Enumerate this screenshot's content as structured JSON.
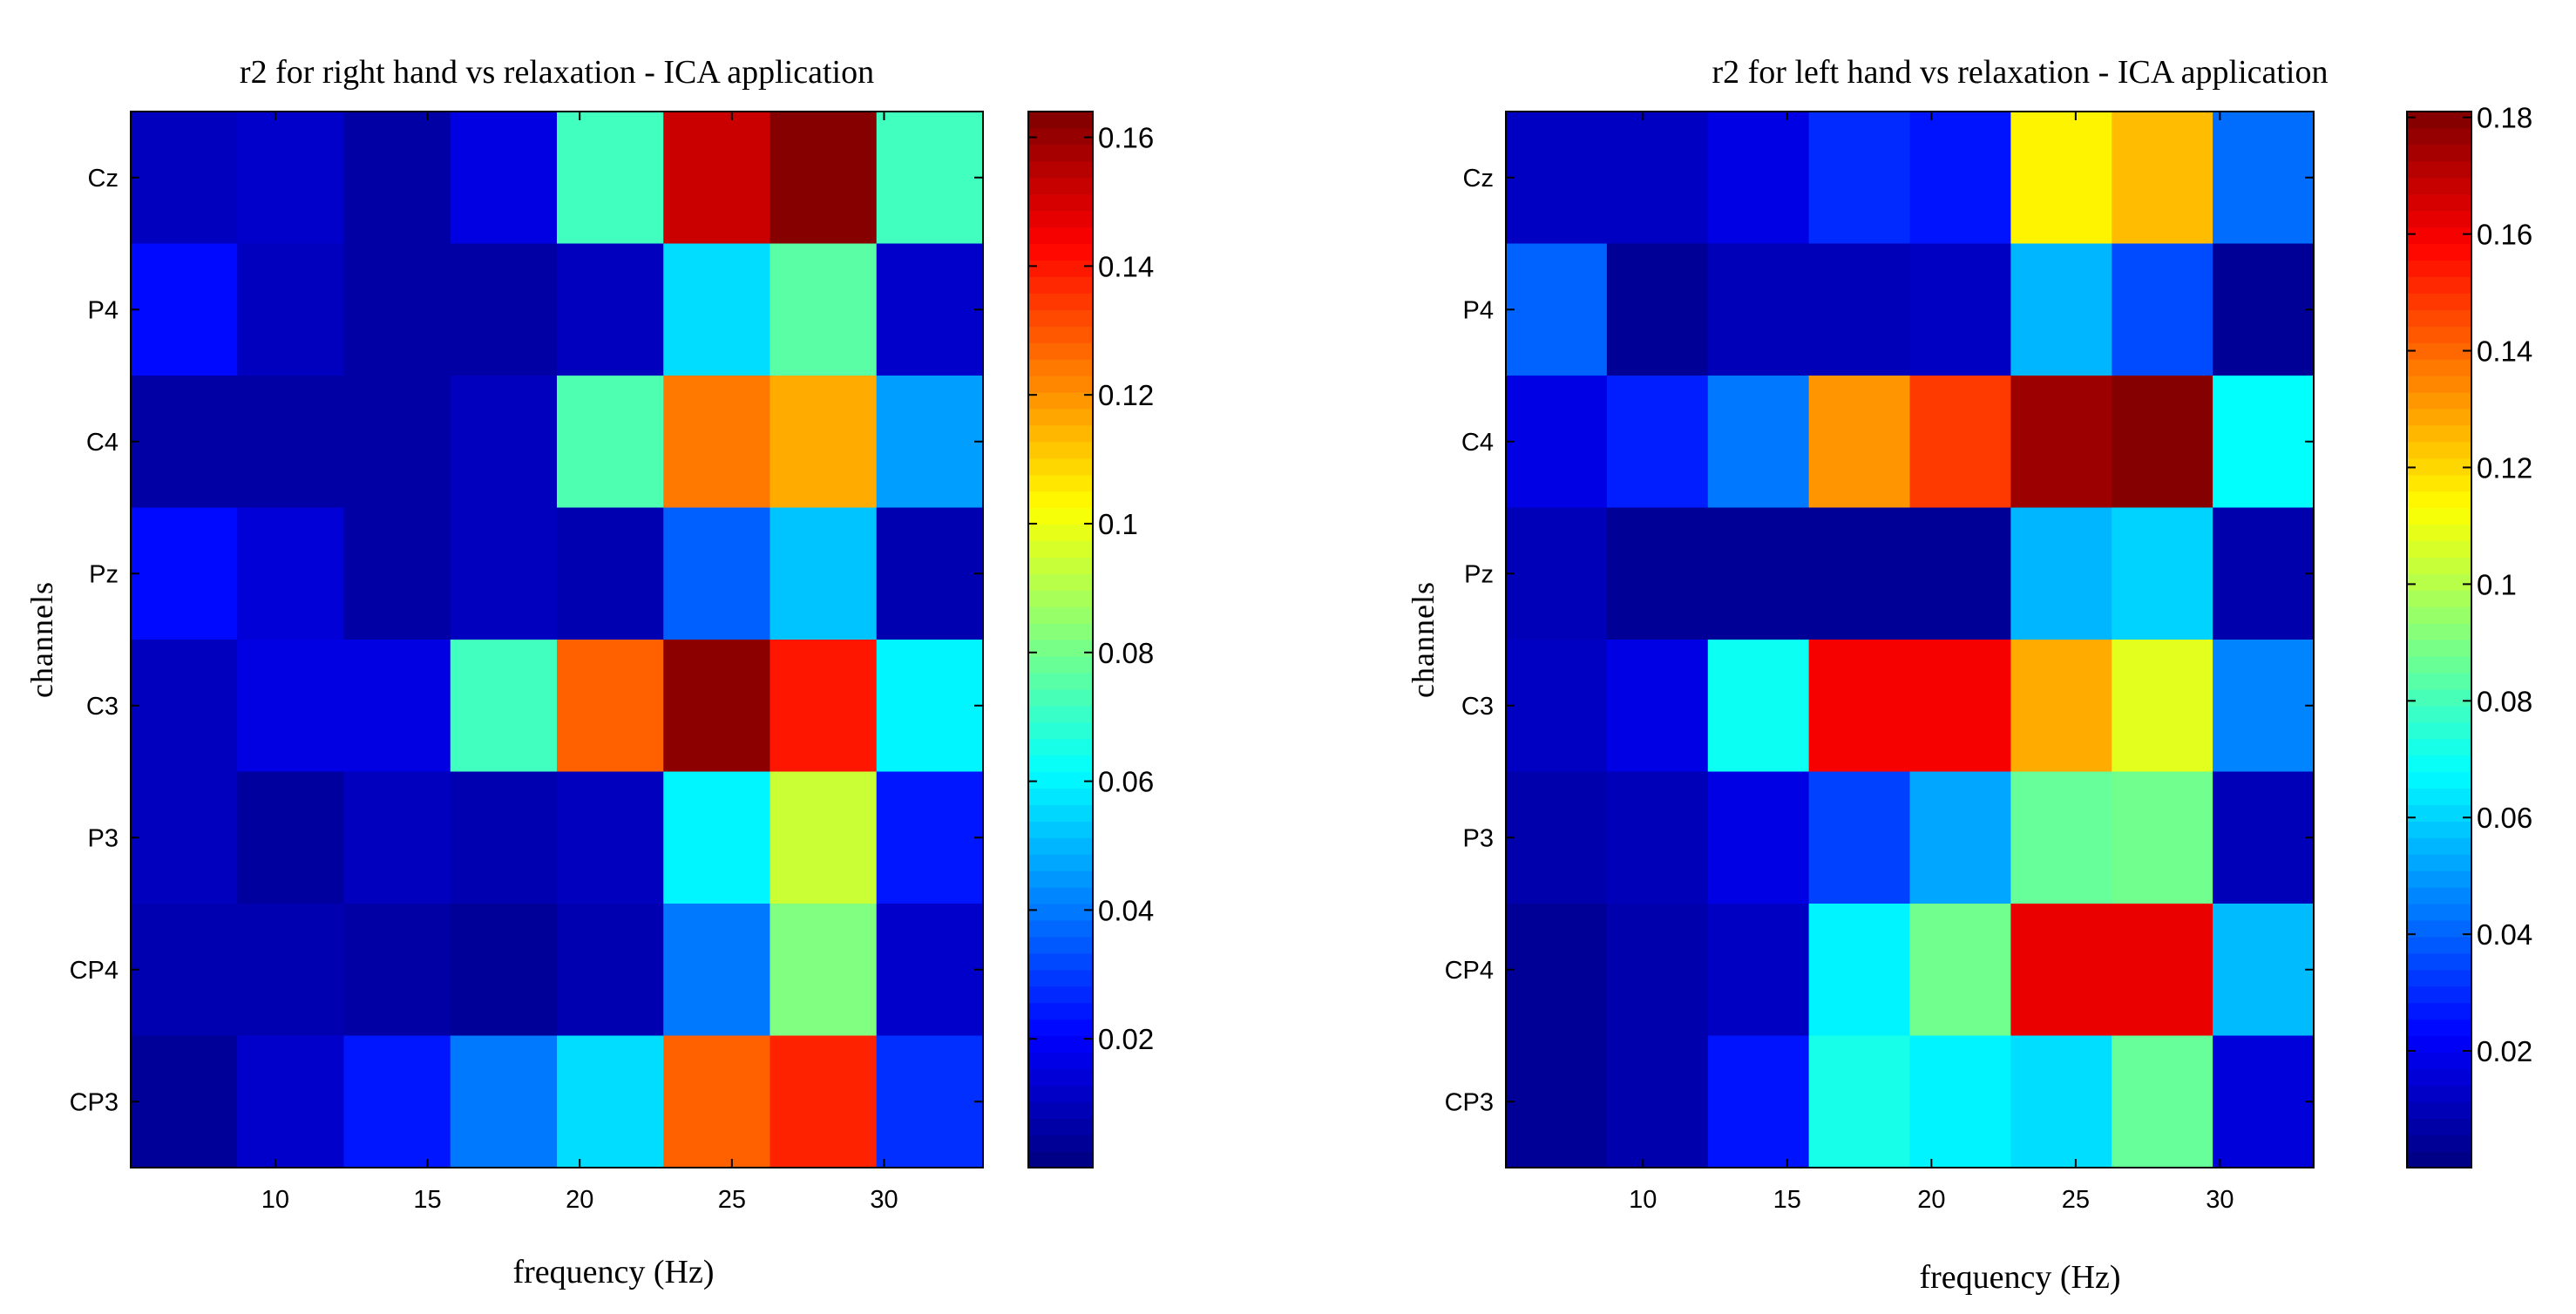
{
  "chart_data": [
    {
      "type": "heatmap",
      "title": "r2 for right hand vs relaxation - ICA application",
      "xlabel": "frequency (Hz)",
      "ylabel": "channels",
      "channels": [
        "Cz",
        "P4",
        "C4",
        "Pz",
        "C3",
        "P3",
        "CP4",
        "CP3"
      ],
      "frequency_bins": [
        7,
        10.5,
        14,
        17.5,
        21,
        24.5,
        28,
        31.5
      ],
      "xlim": [
        5.25,
        33.25
      ],
      "xticks": [
        10,
        15,
        20,
        25,
        30
      ],
      "clim": [
        0,
        0.164
      ],
      "colorbar_ticks": [
        0.02,
        0.04,
        0.06,
        0.08,
        0.1,
        0.12,
        0.14,
        0.16
      ],
      "colorbar_tick_labels": [
        "0.02",
        "0.04",
        "0.06",
        "0.08",
        "0.1",
        "0.12",
        "0.14",
        "0.16"
      ],
      "values": [
        [
          0.01,
          0.012,
          0.006,
          0.016,
          0.072,
          0.152,
          0.163,
          0.072
        ],
        [
          0.022,
          0.01,
          0.006,
          0.006,
          0.01,
          0.056,
          0.076,
          0.012
        ],
        [
          0.006,
          0.006,
          0.006,
          0.01,
          0.074,
          0.124,
          0.116,
          0.046
        ],
        [
          0.022,
          0.014,
          0.006,
          0.01,
          0.008,
          0.036,
          0.052,
          0.008
        ],
        [
          0.01,
          0.016,
          0.016,
          0.072,
          0.128,
          0.162,
          0.14,
          0.06
        ],
        [
          0.01,
          0.005,
          0.01,
          0.008,
          0.01,
          0.06,
          0.094,
          0.024
        ],
        [
          0.008,
          0.008,
          0.006,
          0.004,
          0.008,
          0.04,
          0.082,
          0.012
        ],
        [
          0.004,
          0.012,
          0.024,
          0.04,
          0.056,
          0.128,
          0.138,
          0.028
        ]
      ]
    },
    {
      "type": "heatmap",
      "title": "r2 for left hand vs relaxation - ICA application",
      "xlabel": "frequency (Hz)",
      "ylabel": "channels",
      "channels": [
        "Cz",
        "P4",
        "C4",
        "Pz",
        "C3",
        "P3",
        "CP4",
        "CP3"
      ],
      "frequency_bins": [
        7,
        10.5,
        14,
        17.5,
        21,
        24.5,
        28,
        31.5
      ],
      "xlim": [
        5.25,
        33.25
      ],
      "xticks": [
        10,
        15,
        20,
        25,
        30
      ],
      "clim": [
        0,
        0.181
      ],
      "colorbar_ticks": [
        0.02,
        0.04,
        0.06,
        0.08,
        0.1,
        0.12,
        0.14,
        0.16,
        0.18
      ],
      "colorbar_tick_labels": [
        "0.02",
        "0.04",
        "0.06",
        "0.08",
        "0.1",
        "0.12",
        "0.14",
        "0.16",
        "0.18"
      ],
      "values": [
        [
          0.012,
          0.012,
          0.018,
          0.03,
          0.026,
          0.115,
          0.125,
          0.042
        ],
        [
          0.04,
          0.004,
          0.01,
          0.01,
          0.012,
          0.055,
          0.036,
          0.004
        ],
        [
          0.018,
          0.028,
          0.044,
          0.132,
          0.148,
          0.176,
          0.18,
          0.068
        ],
        [
          0.01,
          0.004,
          0.004,
          0.004,
          0.004,
          0.055,
          0.06,
          0.008
        ],
        [
          0.012,
          0.018,
          0.07,
          0.16,
          0.16,
          0.128,
          0.108,
          0.046
        ],
        [
          0.008,
          0.01,
          0.018,
          0.034,
          0.052,
          0.086,
          0.088,
          0.01
        ],
        [
          0.004,
          0.008,
          0.012,
          0.066,
          0.088,
          0.162,
          0.162,
          0.056
        ],
        [
          0.004,
          0.008,
          0.026,
          0.072,
          0.066,
          0.062,
          0.086,
          0.016
        ]
      ]
    }
  ]
}
